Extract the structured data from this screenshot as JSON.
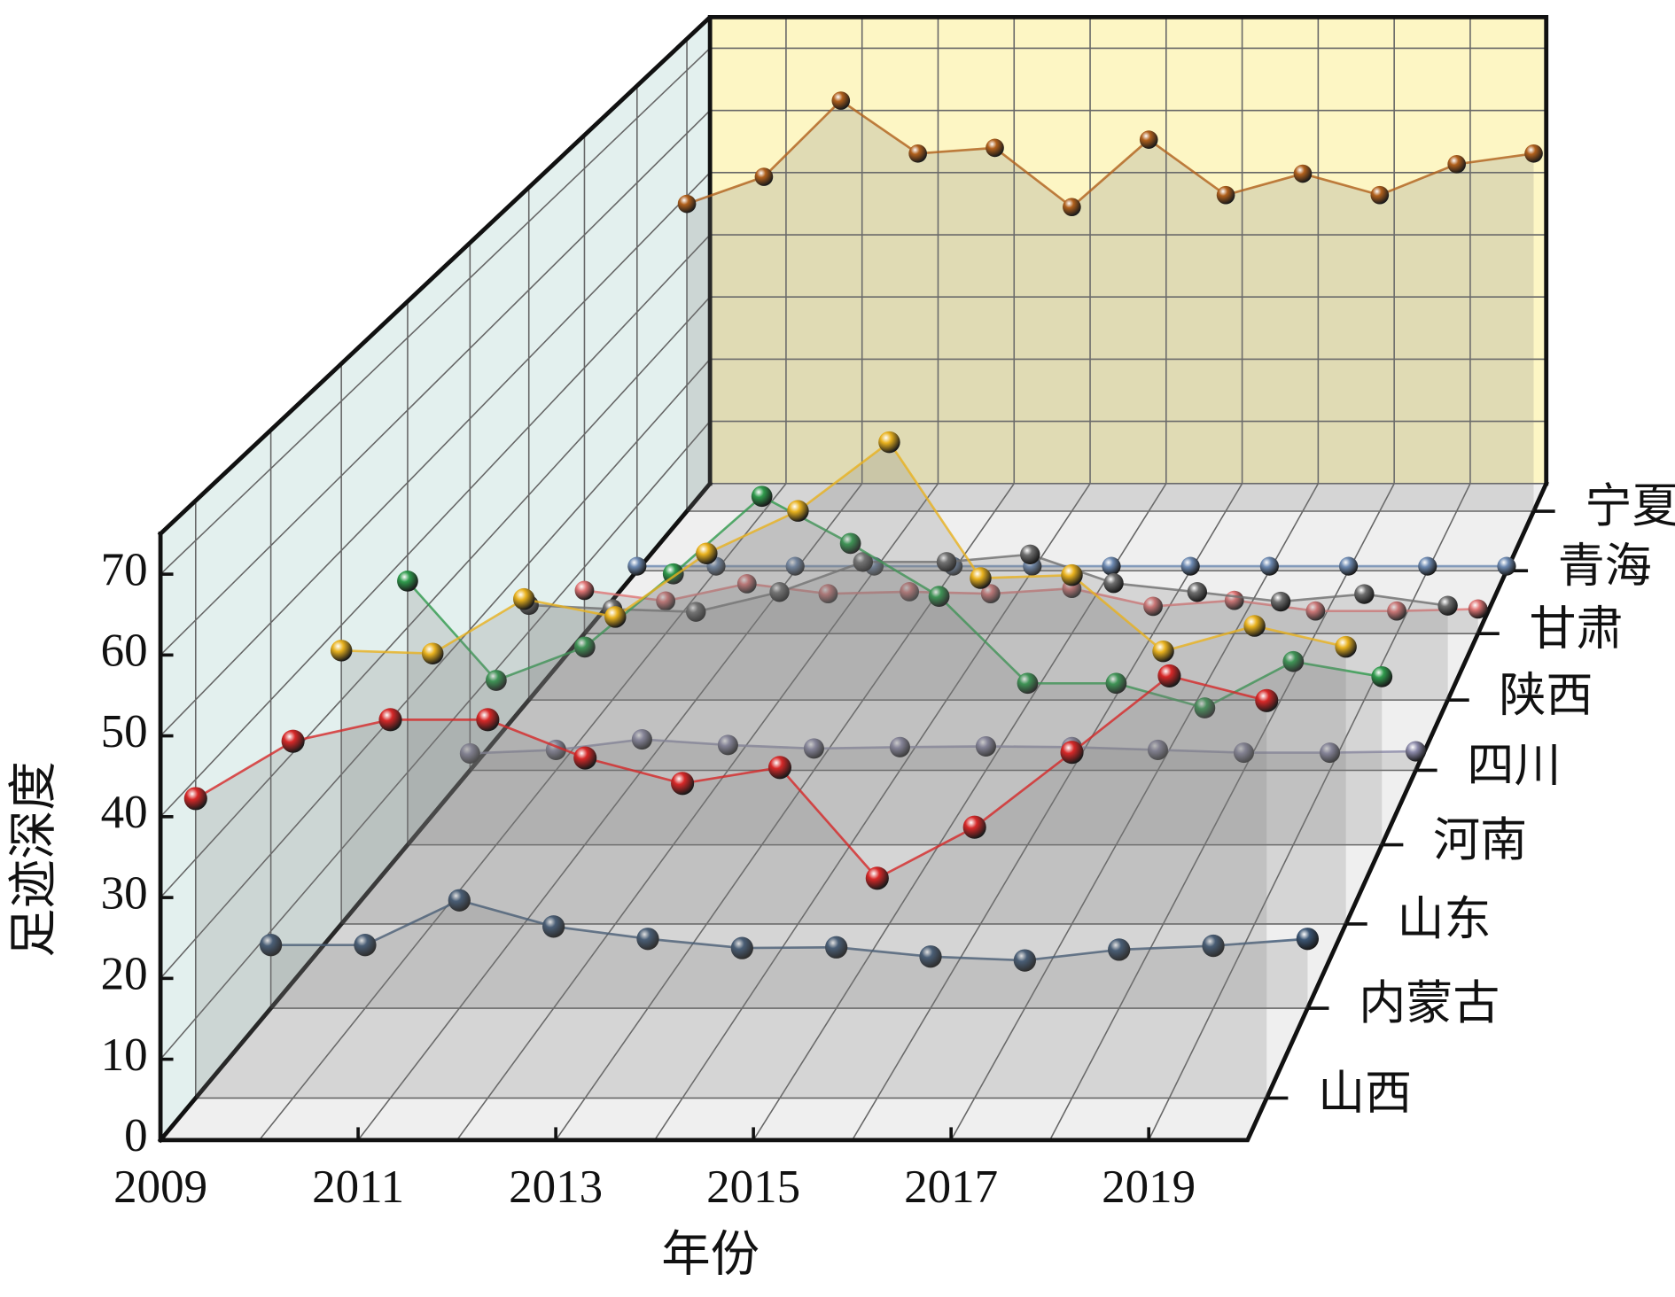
{
  "chart_data": {
    "type": "line",
    "xlabel": "年份",
    "ylabel": "足迹深度",
    "x": [
      2009,
      2010,
      2011,
      2012,
      2013,
      2014,
      2015,
      2016,
      2017,
      2018,
      2019,
      2020
    ],
    "xlim": [
      2009,
      2020
    ],
    "xticks": [
      2009,
      2011,
      2013,
      2015,
      2017,
      2019
    ],
    "ylim": [
      0,
      75
    ],
    "yticks": [
      0,
      10,
      20,
      30,
      40,
      50,
      60,
      70
    ],
    "grid": true,
    "series": [
      {
        "name": "山西",
        "color": "#d62828",
        "values": [
          37.6,
          44.8,
          47.5,
          47.5,
          42.7,
          39.5,
          41.5,
          27.6,
          34.0,
          43.4,
          53.0,
          49.9
        ]
      },
      {
        "name": "内蒙古",
        "color": "#3c5674",
        "values": [
          8.2,
          8.2,
          14.0,
          10.6,
          9.0,
          7.8,
          7.9,
          6.7,
          6.2,
          7.6,
          8.1,
          9.0
        ]
      },
      {
        "name": "山东",
        "color": "#e9b21e",
        "values": [
          36.6,
          36.2,
          43.5,
          41.1,
          49.6,
          55.3,
          64.5,
          46.3,
          46.7,
          36.5,
          39.9,
          37.1
        ]
      },
      {
        "name": "河南",
        "color": "#2f9a4c",
        "values": [
          36.4,
          22.7,
          27.3,
          37.4,
          48.1,
          41.6,
          34.3,
          22.3,
          22.3,
          18.9,
          25.3,
          23.2
        ]
      },
      {
        "name": "四川",
        "color": "#8b89a9",
        "values": [
          2.4,
          2.9,
          4.4,
          3.6,
          3.1,
          3.3,
          3.4,
          3.3,
          2.9,
          2.5,
          2.5,
          2.7
        ]
      },
      {
        "name": "陕西",
        "color": "#6e6e6e",
        "values": [
          13.9,
          13.3,
          12.9,
          15.8,
          20.2,
          20.2,
          21.3,
          17.1,
          15.8,
          14.4,
          15.5,
          13.8
        ]
      },
      {
        "name": "甘肃",
        "color": "#e07575",
        "values": [
          6.5,
          4.9,
          7.5,
          6.0,
          6.3,
          6.0,
          6.8,
          4.1,
          5.0,
          3.4,
          3.4,
          3.7
        ]
      },
      {
        "name": "青海",
        "color": "#6d8ab2",
        "values": [
          0.7,
          0.7,
          0.7,
          0.7,
          0.7,
          0.7,
          0.7,
          0.7,
          0.7,
          0.7,
          0.7,
          0.7
        ]
      },
      {
        "name": "宁夏",
        "color": "#b0601c",
        "values": [
          48.8,
          53.1,
          65.2,
          56.8,
          57.7,
          48.3,
          59.0,
          50.2,
          53.6,
          50.2,
          55.1,
          56.8
        ]
      }
    ]
  }
}
